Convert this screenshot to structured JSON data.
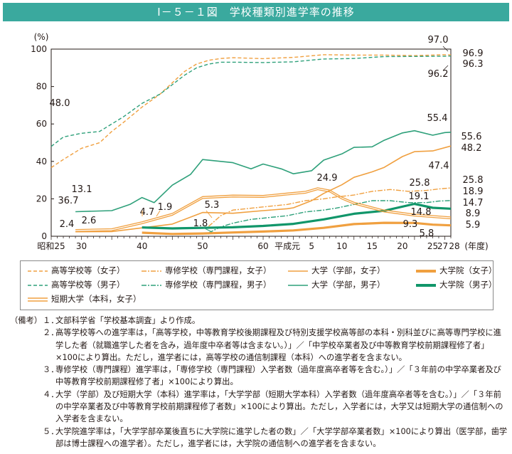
{
  "header": {
    "title": "Ⅰ－５－１図　学校種類別進学率の推移"
  },
  "colors": {
    "header_bg": "#3aa99e",
    "orange": "#f0a040",
    "green": "#2ea07a",
    "dark_green": "#11966a"
  },
  "chart_data": {
    "type": "line",
    "ylabel": "(%)",
    "xlabel": "(年度)",
    "ylim": [
      0,
      100
    ],
    "xlim": [
      1950,
      2016
    ],
    "yticks": [
      0,
      20,
      40,
      60,
      80,
      100
    ],
    "xticks": [
      {
        "year": 1950,
        "label": "昭和25"
      },
      {
        "year": 1955,
        "label": "30"
      },
      {
        "year": 1965,
        "label": "40"
      },
      {
        "year": 1975,
        "label": "50"
      },
      {
        "year": 1985,
        "label": "60"
      },
      {
        "year": 1989,
        "label": "平成元"
      },
      {
        "year": 1993,
        "label": "5"
      },
      {
        "year": 1998,
        "label": "10"
      },
      {
        "year": 2003,
        "label": "15"
      },
      {
        "year": 2008,
        "label": "20"
      },
      {
        "year": 2013,
        "label": "25"
      },
      {
        "year": 2015,
        "label": "27"
      },
      {
        "year": 2016,
        "label": "28"
      }
    ],
    "series": [
      {
        "name": "高等学校等（女子）",
        "x": [
          1950,
          1952,
          1955,
          1958,
          1960,
          1962,
          1965,
          1968,
          1970,
          1972,
          1974,
          1976,
          1978,
          1980,
          1985,
          1990,
          1995,
          2000,
          2005,
          2010,
          2015,
          2016
        ],
        "y": [
          36.7,
          41,
          47,
          50,
          56,
          61,
          69,
          76,
          82,
          88,
          92,
          94,
          95,
          95.4,
          94.9,
          95.6,
          97,
          96.8,
          96.8,
          96.5,
          97.0,
          96.9
        ]
      },
      {
        "name": "高等学校等（男子）",
        "x": [
          1950,
          1952,
          1955,
          1958,
          1960,
          1962,
          1965,
          1968,
          1970,
          1972,
          1974,
          1976,
          1978,
          1980,
          1985,
          1990,
          1995,
          2000,
          2005,
          2010,
          2015,
          2016
        ],
        "y": [
          48.0,
          53,
          55,
          56,
          60,
          64,
          71,
          76,
          81,
          86,
          90,
          92,
          93,
          93,
          92.8,
          93.2,
          94.7,
          95,
          96,
          96.1,
          96.2,
          96.3
        ]
      },
      {
        "name": "専修学校（専門課程，女子）",
        "x": [
          1976,
          1978,
          1980,
          1983,
          1986,
          1989,
          1992,
          1995,
          1997,
          2000,
          2003,
          2006,
          2009,
          2012,
          2014,
          2016
        ],
        "y": [
          5.3,
          11,
          14,
          15,
          16,
          17,
          19,
          20,
          21,
          22,
          24,
          25,
          24,
          24.5,
          25.3,
          25.8
        ]
      },
      {
        "name": "専修学校（専門課程，男子）",
        "x": [
          1976,
          1978,
          1980,
          1983,
          1986,
          1989,
          1992,
          1995,
          1997,
          2000,
          2003,
          2006,
          2009,
          2012,
          2014,
          2016
        ],
        "y": [
          1.8,
          5,
          7,
          9,
          10,
          11,
          13,
          14,
          15,
          17,
          19,
          19,
          18,
          18,
          18.8,
          19.1
        ]
      },
      {
        "name": "大学（学部，女子）",
        "x": [
          1954,
          1960,
          1965,
          1970,
          1975,
          1980,
          1985,
          1989,
          1990,
          1993,
          1995,
          1998,
          2000,
          2003,
          2005,
          2008,
          2010,
          2013,
          2016
        ],
        "y": [
          2.4,
          2.5,
          4.5,
          6.5,
          12.7,
          12.3,
          13.7,
          14.7,
          15.2,
          19,
          22.9,
          27.5,
          31.5,
          34.4,
          36.8,
          42.6,
          45.2,
          45.6,
          48.2
        ]
      },
      {
        "name": "大学（学部，男子）",
        "x": [
          1954,
          1960,
          1963,
          1965,
          1967,
          1970,
          1973,
          1975,
          1978,
          1980,
          1983,
          1985,
          1988,
          1990,
          1993,
          1995,
          1998,
          2000,
          2003,
          2005,
          2008,
          2010,
          2013,
          2015,
          2016
        ],
        "y": [
          13.1,
          13.7,
          17,
          20.7,
          18,
          27.3,
          33,
          41,
          40,
          39.3,
          36,
          38.6,
          36,
          33.4,
          35,
          40.7,
          44,
          47.5,
          47.8,
          51.3,
          55.2,
          56.4,
          54,
          55.4,
          55.6
        ]
      },
      {
        "name": "大学院（女子）",
        "x": [
          1965,
          1970,
          1975,
          1980,
          1985,
          1990,
          1995,
          2000,
          2005,
          2010,
          2013,
          2016
        ],
        "y": [
          1.9,
          1.2,
          1.5,
          2,
          2.5,
          3.1,
          4.5,
          6.5,
          7.2,
          7.1,
          6.2,
          5.8
        ]
      },
      {
        "name": "大学院（男子）",
        "x": [
          1965,
          1970,
          1975,
          1980,
          1985,
          1990,
          1995,
          2000,
          2005,
          2010,
          2013,
          2016
        ],
        "y": [
          4.7,
          4.2,
          4.5,
          4.8,
          5.5,
          6.6,
          9,
          12,
          13.6,
          17.3,
          15.2,
          14.7
        ]
      },
      {
        "name": "短期大学（本科，女子）",
        "x": [
          1954,
          1960,
          1965,
          1970,
          1975,
          1980,
          1985,
          1989,
          1992,
          1994,
          1996,
          1998,
          2000,
          2005,
          2010,
          2016
        ],
        "y": [
          2.6,
          3,
          6.7,
          11.2,
          20.2,
          21,
          20.8,
          22.1,
          23,
          24.9,
          23.7,
          19.9,
          17.2,
          13,
          10.8,
          9.3
        ]
      }
    ],
    "labels": [
      {
        "text": "100"
      },
      {
        "text": "80"
      },
      {
        "text": "60"
      },
      {
        "text": "40"
      },
      {
        "text": "20"
      },
      {
        "text": "0"
      },
      {
        "text": "48.0"
      },
      {
        "text": "36.7"
      },
      {
        "text": "13.1"
      },
      {
        "text": "2.4"
      },
      {
        "text": "2.6"
      },
      {
        "text": "4.7"
      },
      {
        "text": "1.9"
      },
      {
        "text": "5.3"
      },
      {
        "text": "1.8"
      },
      {
        "text": "24.9"
      },
      {
        "text": "97.0"
      },
      {
        "text": "96.9"
      },
      {
        "text": "96.3"
      },
      {
        "text": "96.2"
      },
      {
        "text": "55.4"
      },
      {
        "text": "55.6"
      },
      {
        "text": "48.2"
      },
      {
        "text": "47.4"
      },
      {
        "text": "25.8"
      },
      {
        "text": "25.8"
      },
      {
        "text": "18.9"
      },
      {
        "text": "19.1"
      },
      {
        "text": "14.7"
      },
      {
        "text": "14.8"
      },
      {
        "text": "8.9"
      },
      {
        "text": "9.3"
      },
      {
        "text": "5.9"
      },
      {
        "text": "5.8"
      }
    ]
  },
  "legend": [
    {
      "label": "高等学校等（女子）",
      "color": "#f0a040",
      "style": "dashed",
      "width": 1.6
    },
    {
      "label": "専修学校（専門課程，女子）",
      "color": "#f0a040",
      "style": "dashdot",
      "width": 1.6
    },
    {
      "label": "大学（学部，女子）",
      "color": "#f0a040",
      "style": "solid",
      "width": 1.6
    },
    {
      "label": "大学院（女子）",
      "color": "#f0a040",
      "style": "solid",
      "width": 4
    },
    {
      "label": "高等学校等（男子）",
      "color": "#2ea07a",
      "style": "dashed",
      "width": 1.6
    },
    {
      "label": "専修学校（専門課程，男子）",
      "color": "#2ea07a",
      "style": "dashdot",
      "width": 1.6
    },
    {
      "label": "大学（学部，男子）",
      "color": "#2ea07a",
      "style": "solid",
      "width": 1.6
    },
    {
      "label": "大学院（男子）",
      "color": "#11966a",
      "style": "solid",
      "width": 4
    },
    {
      "label": "短期大学（本科，女子）",
      "color": "#f0a040",
      "style": "double",
      "width": 1.4
    }
  ],
  "notes": {
    "head": "（備考）",
    "items": [
      {
        "num": "１．",
        "text": "文部科学省「学校基本調査」より作成。"
      },
      {
        "num": "２．",
        "text": "高等学校等への進学率は，「高等学校，中等教育学校後期課程及び特別支援学校高等部の本科・別科並びに高等専門学校に進学した者（就職進学した者を含み，過年度中卒者等は含まない。）」／「中学校卒業者及び中等教育学校前期課程修了者」×100により算出。ただし，進学者には，高等学校の通信制課程（本科）への進学者を含まない。"
      },
      {
        "num": "３．",
        "text": "専修学校（専門課程）進学率は，「専修学校（専門課程）入学者数（過年度高卒者等を含む。）」／「３年前の中学卒業者及び中等教育学校前期課程修了者」×100により算出。"
      },
      {
        "num": "４．",
        "text": "大学（学部）及び短期大学（本科）進学率は，「大学学部（短期大学本科）入学者数（過年度高卒者等を含む。）」／「３年前の中学卒業者及び中等教育学校前期課程修了者数」×100により算出。ただし，入学者には，大学又は短期大学の通信制への入学者を含まない。"
      },
      {
        "num": "５．",
        "text": "大学院進学率は，「大学学部卒業後直ちに大学院に進学した者の数」／「大学学部卒業者数」×100により算出（医学部，歯学部は博士課程への進学者）。ただし，進学者には，大学院の通信制への進学者を含まない。"
      }
    ]
  }
}
